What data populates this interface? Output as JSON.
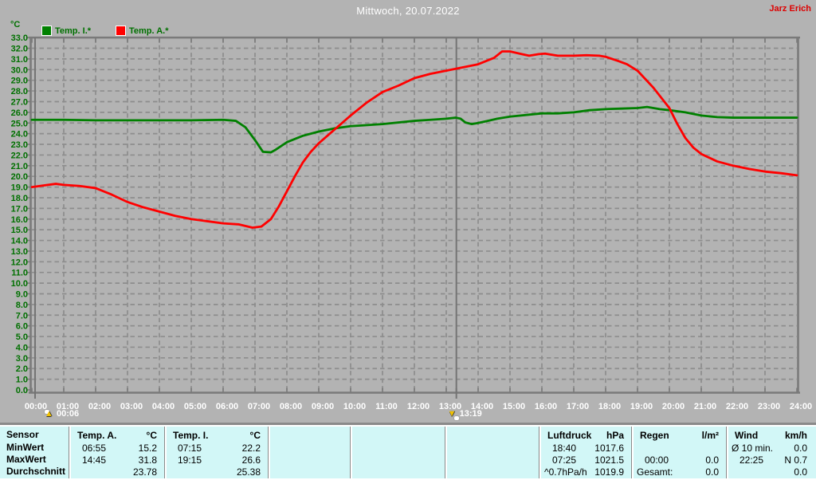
{
  "header": {
    "title": "Mittwoch, 20.07.2022",
    "author": "Jarz Erich"
  },
  "legend": {
    "unit": "°C",
    "series": [
      {
        "label": "Temp. I.*",
        "color": "#008000"
      },
      {
        "label": "Temp. A.*",
        "color": "#ff0000"
      }
    ]
  },
  "colors": {
    "background": "#b3b3b3",
    "grid": "#8d8d8d",
    "axis": "#7a7a7a",
    "marker_line": "#747474",
    "y_text": "#007000",
    "x_text": "#ffffff",
    "table_bg": "#d2f7f7"
  },
  "chart_data": {
    "type": "line",
    "title": "Mittwoch, 20.07.2022",
    "ylabel": "°C",
    "ylim": [
      0.0,
      33.0
    ],
    "ytick_step": 1.0,
    "grid": "dashed",
    "legend_position": "top-left",
    "xtick_labels": [
      "00:00",
      "01:00",
      "02:00",
      "03:00",
      "04:00",
      "05:00",
      "06:00",
      "07:00",
      "08:00",
      "09:00",
      "10:00",
      "11:00",
      "12:00",
      "13:00",
      "14:00",
      "15:00",
      "16:00",
      "17:00",
      "18:00",
      "19:00",
      "20:00",
      "21:00",
      "22:00",
      "23:00",
      "24:00"
    ],
    "series": [
      {
        "name": "Temp. I.*",
        "color": "#008000",
        "points": [
          [
            0,
            25.3
          ],
          [
            1,
            25.3
          ],
          [
            2,
            25.25
          ],
          [
            3,
            25.25
          ],
          [
            4,
            25.25
          ],
          [
            5,
            25.25
          ],
          [
            6,
            25.3
          ],
          [
            6.4,
            25.2
          ],
          [
            6.7,
            24.6
          ],
          [
            7.0,
            23.4
          ],
          [
            7.25,
            22.3
          ],
          [
            7.5,
            22.25
          ],
          [
            7.65,
            22.5
          ],
          [
            8.0,
            23.2
          ],
          [
            8.5,
            23.8
          ],
          [
            9.0,
            24.2
          ],
          [
            9.5,
            24.5
          ],
          [
            10.0,
            24.7
          ],
          [
            11.0,
            24.9
          ],
          [
            12.0,
            25.2
          ],
          [
            12.5,
            25.3
          ],
          [
            13.0,
            25.4
          ],
          [
            13.3,
            25.5
          ],
          [
            13.45,
            25.4
          ],
          [
            13.6,
            25.05
          ],
          [
            13.8,
            24.9
          ],
          [
            14.0,
            25.0
          ],
          [
            14.3,
            25.2
          ],
          [
            14.6,
            25.4
          ],
          [
            15.0,
            25.6
          ],
          [
            16.0,
            25.9
          ],
          [
            16.5,
            25.9
          ],
          [
            17.0,
            26.0
          ],
          [
            17.5,
            26.2
          ],
          [
            18.0,
            26.3
          ],
          [
            18.5,
            26.35
          ],
          [
            19.0,
            26.4
          ],
          [
            19.3,
            26.5
          ],
          [
            19.7,
            26.3
          ],
          [
            20.0,
            26.2
          ],
          [
            20.5,
            26.0
          ],
          [
            21.0,
            25.7
          ],
          [
            21.5,
            25.55
          ],
          [
            22.0,
            25.5
          ],
          [
            23.0,
            25.5
          ],
          [
            24.0,
            25.5
          ]
        ]
      },
      {
        "name": "Temp. A.*",
        "color": "#ff0000",
        "points": [
          [
            0,
            19.0
          ],
          [
            0.5,
            19.2
          ],
          [
            0.75,
            19.3
          ],
          [
            1.0,
            19.2
          ],
          [
            1.5,
            19.1
          ],
          [
            2.0,
            18.9
          ],
          [
            2.5,
            18.3
          ],
          [
            3.0,
            17.6
          ],
          [
            3.5,
            17.1
          ],
          [
            4.0,
            16.7
          ],
          [
            4.5,
            16.3
          ],
          [
            5.0,
            16.0
          ],
          [
            5.5,
            15.8
          ],
          [
            6.0,
            15.6
          ],
          [
            6.5,
            15.5
          ],
          [
            6.92,
            15.2
          ],
          [
            7.2,
            15.3
          ],
          [
            7.5,
            16.0
          ],
          [
            7.75,
            17.2
          ],
          [
            8.0,
            18.6
          ],
          [
            8.25,
            20.0
          ],
          [
            8.5,
            21.3
          ],
          [
            8.75,
            22.3
          ],
          [
            9.0,
            23.1
          ],
          [
            9.5,
            24.4
          ],
          [
            10.0,
            25.7
          ],
          [
            10.5,
            26.9
          ],
          [
            11.0,
            27.9
          ],
          [
            11.5,
            28.5
          ],
          [
            12.0,
            29.2
          ],
          [
            12.5,
            29.6
          ],
          [
            13.0,
            29.9
          ],
          [
            13.5,
            30.2
          ],
          [
            14.0,
            30.5
          ],
          [
            14.5,
            31.1
          ],
          [
            14.75,
            31.7
          ],
          [
            15.0,
            31.7
          ],
          [
            15.3,
            31.5
          ],
          [
            15.6,
            31.3
          ],
          [
            15.9,
            31.45
          ],
          [
            16.1,
            31.5
          ],
          [
            16.5,
            31.3
          ],
          [
            17.0,
            31.3
          ],
          [
            17.4,
            31.35
          ],
          [
            17.8,
            31.3
          ],
          [
            18.0,
            31.2
          ],
          [
            18.4,
            30.8
          ],
          [
            18.67,
            30.5
          ],
          [
            19.0,
            29.9
          ],
          [
            19.5,
            28.3
          ],
          [
            20.0,
            26.4
          ],
          [
            20.25,
            24.9
          ],
          [
            20.5,
            23.6
          ],
          [
            20.75,
            22.7
          ],
          [
            21.0,
            22.1
          ],
          [
            21.5,
            21.4
          ],
          [
            22.0,
            21.0
          ],
          [
            22.5,
            20.7
          ],
          [
            23.0,
            20.45
          ],
          [
            23.5,
            20.3
          ],
          [
            24.0,
            20.1
          ]
        ]
      }
    ],
    "markers": [
      {
        "label": "00:06",
        "hour": 0.1,
        "direction": "up"
      },
      {
        "label": "13:19",
        "hour": 13.3167,
        "direction": "down"
      }
    ]
  },
  "table": {
    "row_labels": [
      "Sensor",
      "MinWert",
      "MaxWert",
      "Durchschnitt"
    ],
    "columns": [
      {
        "name": "Temp. A.",
        "unit": "°C",
        "rows": [
          [
            "06:55",
            "15.2"
          ],
          [
            "14:45",
            "31.8"
          ],
          [
            "",
            "23.78"
          ]
        ]
      },
      {
        "name": "Temp. I.",
        "unit": "°C",
        "rows": [
          [
            "07:15",
            "22.2"
          ],
          [
            "19:15",
            "26.6"
          ],
          [
            "",
            "25.38"
          ]
        ]
      },
      {
        "name": "",
        "unit": "",
        "rows": [
          [
            "",
            ""
          ],
          [
            "",
            ""
          ],
          [
            "",
            ""
          ]
        ]
      },
      {
        "name": "",
        "unit": "",
        "rows": [
          [
            "",
            ""
          ],
          [
            "",
            ""
          ],
          [
            "",
            ""
          ]
        ]
      },
      {
        "name": "",
        "unit": "",
        "rows": [
          [
            "",
            ""
          ],
          [
            "",
            ""
          ],
          [
            "",
            ""
          ]
        ]
      },
      {
        "name": "Luftdruck",
        "unit": "hPa",
        "rows": [
          [
            "18:40",
            "1017.6"
          ],
          [
            "07:25",
            "1021.5"
          ],
          [
            "^0.7hPa/h",
            "1019.9"
          ]
        ]
      },
      {
        "name": "Regen",
        "unit": "l/m²",
        "rows": [
          [
            "",
            ""
          ],
          [
            "00:00",
            "0.0"
          ],
          [
            "Gesamt:",
            "0.0"
          ]
        ]
      },
      {
        "name": "Wind",
        "unit": "km/h",
        "rows": [
          [
            "Ø 10 min.",
            "0.0"
          ],
          [
            "22:25",
            "N 0.7"
          ],
          [
            "",
            "0.0"
          ]
        ]
      }
    ]
  }
}
